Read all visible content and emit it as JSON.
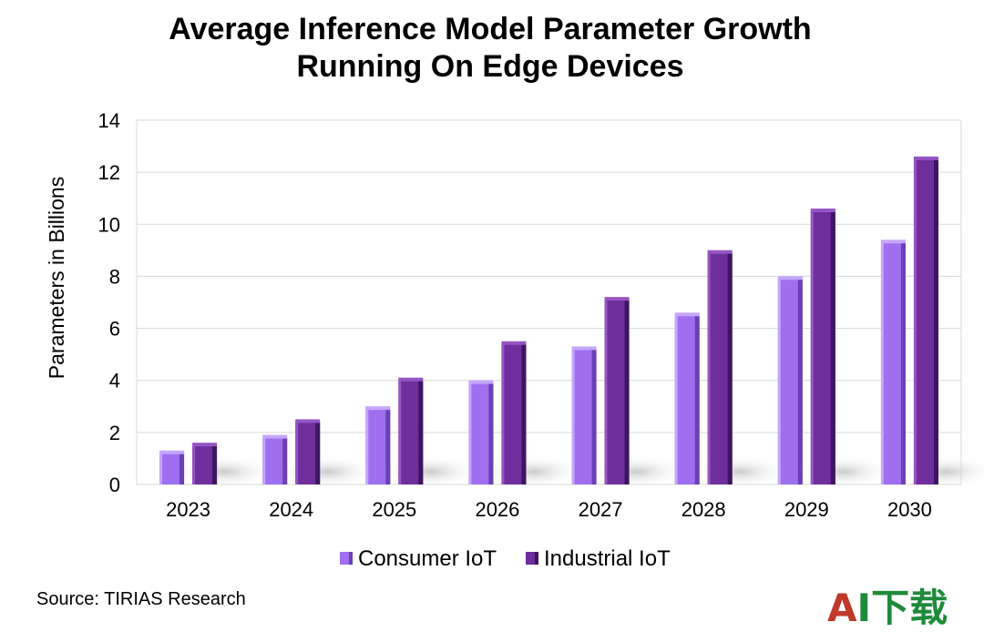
{
  "chart_data": {
    "type": "bar",
    "title_line1": "Average Inference Model Parameter Growth",
    "title_line2": "Running On Edge Devices",
    "xlabel": "",
    "ylabel": "Parameters in Billions",
    "ylim": [
      0,
      14
    ],
    "yticks": [
      "0",
      "2",
      "4",
      "6",
      "8",
      "10",
      "12",
      "14"
    ],
    "categories": [
      "2023",
      "2024",
      "2025",
      "2026",
      "2027",
      "2028",
      "2029",
      "2030"
    ],
    "series": [
      {
        "name": "Consumer IoT",
        "values": [
          1.2,
          1.8,
          2.9,
          3.9,
          5.2,
          6.5,
          7.9,
          9.3
        ],
        "color": "#9F6FF0"
      },
      {
        "name": "Industrial IoT",
        "values": [
          1.5,
          2.4,
          4.0,
          5.4,
          7.1,
          8.9,
          10.5,
          12.5
        ],
        "color": "#6E2E9C"
      }
    ],
    "grid": true,
    "legend_position": "bottom"
  },
  "source": "Source: TIRIAS Research",
  "logo": {
    "text": "AI下载",
    "color_a": "#C0392B",
    "color_rest": "#1E8B3A"
  }
}
